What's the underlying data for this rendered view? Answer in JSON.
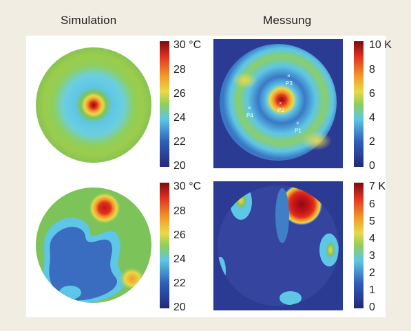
{
  "titles": {
    "left": "Simulation",
    "right": "Messung"
  },
  "chart_data": [
    {
      "type": "heatmap",
      "title": "Simulation",
      "colorbar": {
        "ticks": [
          "30 °C",
          "28",
          "26",
          "24",
          "22",
          "20"
        ],
        "range": [
          20,
          30
        ],
        "unit": "°C"
      },
      "description_points": []
    },
    {
      "type": "heatmap",
      "title": "Messung",
      "colorbar": {
        "ticks": [
          "10 K",
          "8",
          "6",
          "4",
          "2",
          "0"
        ],
        "range": [
          0,
          10
        ],
        "unit": "K"
      },
      "markers": [
        "P1",
        "P2",
        "P3",
        "P4"
      ]
    },
    {
      "type": "heatmap",
      "title": "",
      "colorbar": {
        "ticks": [
          "30 °C",
          "28",
          "26",
          "24",
          "22",
          "20"
        ],
        "range": [
          20,
          30
        ],
        "unit": "°C"
      }
    },
    {
      "type": "heatmap",
      "title": "",
      "colorbar": {
        "ticks": [
          "7 K",
          "6",
          "5",
          "4",
          "3",
          "2",
          "1",
          "0"
        ],
        "range": [
          0,
          7
        ],
        "unit": "K"
      }
    }
  ],
  "colors": {
    "dark_red": "#8b0a13",
    "red": "#e0301e",
    "orange": "#f39b2a",
    "yellow": "#e9d94a",
    "green": "#7cc35a",
    "cyan": "#5ec6e6",
    "blue": "#2f5fb8",
    "navy": "#2b2f7e"
  }
}
